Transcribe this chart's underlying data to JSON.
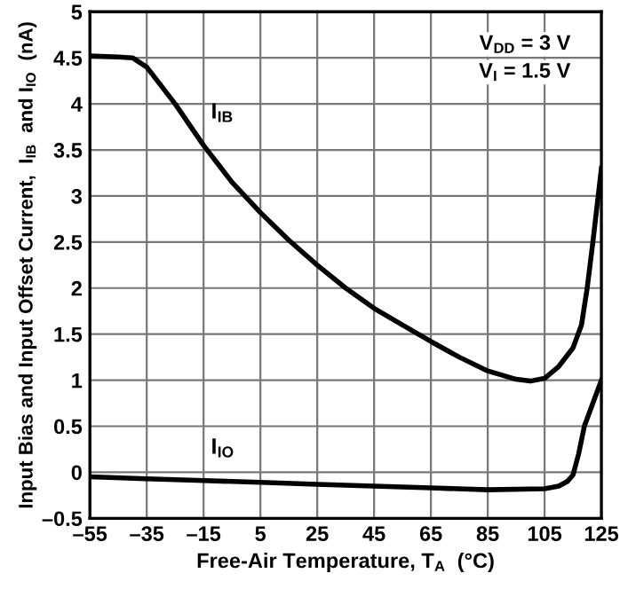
{
  "chart_data": {
    "type": "line",
    "xlabel": "Free-Air Temperature, T$_{A}$  (°C)",
    "ylabel": "Input Bias and Input Offset Current,  I$_{IB}$  and I$_{IO}$  (nA)",
    "x": [
      -55,
      -45,
      -40,
      -35,
      -25,
      -15,
      -5,
      5,
      15,
      25,
      35,
      45,
      55,
      65,
      75,
      85,
      95,
      100,
      105,
      110,
      115,
      118,
      120,
      122,
      125
    ],
    "series": [
      {
        "name": "I$_{IB}$",
        "color": "#000000",
        "values": [
          4.52,
          4.51,
          4.5,
          4.4,
          4.0,
          3.55,
          3.15,
          2.82,
          2.52,
          2.25,
          2.0,
          1.78,
          1.6,
          1.42,
          1.25,
          1.1,
          1.01,
          0.99,
          1.02,
          1.15,
          1.35,
          1.6,
          2.0,
          2.5,
          3.3
        ]
      },
      {
        "name": "I$_{IO}$",
        "color": "#000000",
        "x": [
          -55,
          -35,
          -15,
          5,
          25,
          45,
          65,
          85,
          105,
          110,
          113,
          115,
          117,
          119,
          122,
          125
        ],
        "values": [
          -0.05,
          -0.07,
          -0.09,
          -0.11,
          -0.13,
          -0.15,
          -0.17,
          -0.19,
          -0.18,
          -0.15,
          -0.1,
          -0.03,
          0.2,
          0.5,
          0.75,
          1.0
        ]
      }
    ],
    "annotations": [
      "V$_{DD}$ = 3 V",
      "V$_{I}$ = 1.5 V"
    ],
    "xlim": [
      -55,
      125
    ],
    "xticks": [
      {
        "value": -55,
        "label": "–55"
      },
      {
        "value": -35,
        "label": "–35"
      },
      {
        "value": -15,
        "label": "–15"
      },
      5,
      25,
      45,
      65,
      85,
      105,
      125
    ],
    "ylim": [
      -0.5,
      5
    ],
    "yticks": [
      {
        "value": -0.5,
        "label": "–0.5"
      },
      0,
      0.5,
      1,
      1.5,
      2,
      2.5,
      3,
      3.5,
      4,
      4.5,
      5
    ],
    "grid": true,
    "marker": "none",
    "line_style": "solid",
    "legend": false
  }
}
